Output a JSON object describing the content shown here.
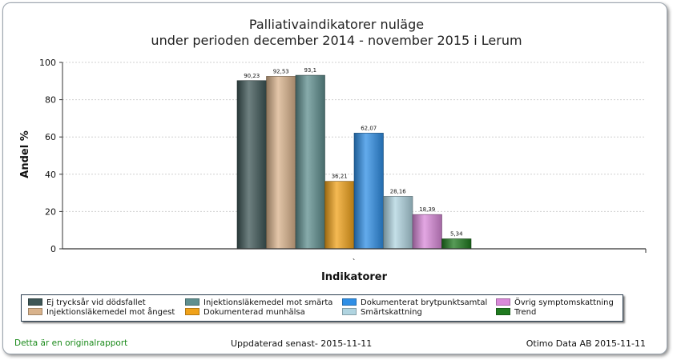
{
  "chart_data": {
    "type": "bar",
    "title": "Palliativaindikatorer nuläge",
    "subtitle": "under perioden december 2014 - november 2015 i  Lerum",
    "xlabel": "Indikatorer",
    "ylabel": "Andel %",
    "category_tick": "`",
    "ylim": [
      0,
      100
    ],
    "yticks": [
      "0",
      "20",
      "40",
      "60",
      "80",
      "100"
    ],
    "grid": true,
    "legend_position": "bottom",
    "series": [
      {
        "name": "Ej trycksår vid dödsfallet",
        "value": 90.23,
        "label": "90,23",
        "color": "#3d5656"
      },
      {
        "name": "Injektionsläkemedel mot ångest",
        "value": 92.53,
        "label": "92,53",
        "color": "#d9b38c"
      },
      {
        "name": "Injektionsläkemedel mot smärta",
        "value": 93.1,
        "label": "93,1",
        "color": "#5f8f8f"
      },
      {
        "name": "Dokumenterad munhälsa",
        "value": 36.21,
        "label": "36,21",
        "color": "#f0a21a"
      },
      {
        "name": "Dokumenterat brytpunktsamtal",
        "value": 62.07,
        "label": "62,07",
        "color": "#2f8fe6"
      },
      {
        "name": "Smärtskattning",
        "value": 28.16,
        "label": "28,16",
        "color": "#b0d4e0"
      },
      {
        "name": "Övrig symptomskattning",
        "value": 18.39,
        "label": "18,39",
        "color": "#d98ad9"
      },
      {
        "name": "Trend",
        "value": 5.34,
        "label": "5,34",
        "color": "#1f7a1f"
      }
    ]
  },
  "footer": {
    "left": "Detta är en originalrapport",
    "middle": "Uppdaterad senast- 2015-11-11",
    "right": "Otimo Data AB 2015-11-11"
  }
}
